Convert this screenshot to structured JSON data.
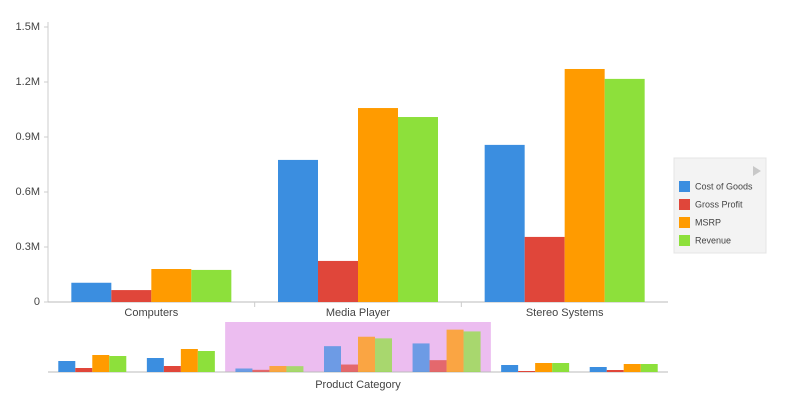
{
  "chart_data": [
    {
      "type": "bar",
      "categories": [
        "Computers",
        "Media Player",
        "Stereo Systems"
      ],
      "series": [
        {
          "name": "Cost of Goods",
          "color": "#3b8ee0",
          "values": [
            105000,
            775000,
            857000
          ]
        },
        {
          "name": "Gross Profit",
          "color": "#e0463a",
          "values": [
            65000,
            224000,
            355000
          ]
        },
        {
          "name": "MSRP",
          "color": "#ff9b00",
          "values": [
            180000,
            1058000,
            1271000
          ]
        },
        {
          "name": "Revenue",
          "color": "#8de03b",
          "values": [
            175000,
            1009000,
            1217000
          ]
        }
      ],
      "ylim": [
        0,
        1500000
      ],
      "yticks": [
        0,
        {
          "value": 300000,
          "label": "0.3M"
        },
        {
          "value": 600000,
          "label": "0.6M"
        },
        {
          "value": 900000,
          "label": "0.9M"
        },
        {
          "value": 1200000,
          "label": "1.2M"
        },
        {
          "value": 1500000,
          "label": "1.5M"
        }
      ],
      "legend": "right"
    },
    {
      "type": "bar",
      "xlabel": "Product Category",
      "categories": [
        null,
        null,
        null,
        null,
        null,
        null,
        null
      ],
      "series": [
        {
          "name": "Cost of Goods",
          "color": "#3b8ee0",
          "values": [
            330000,
            420000,
            105000,
            775000,
            857000,
            210000,
            150000
          ]
        },
        {
          "name": "Gross Profit",
          "color": "#e0463a",
          "values": [
            120000,
            180000,
            65000,
            224000,
            355000,
            30000,
            60000
          ]
        },
        {
          "name": "MSRP",
          "color": "#ff9b00",
          "values": [
            510000,
            690000,
            180000,
            1058000,
            1271000,
            270000,
            240000
          ]
        },
        {
          "name": "Revenue",
          "color": "#8de03b",
          "values": [
            480000,
            630000,
            175000,
            1009000,
            1217000,
            270000,
            240000
          ]
        }
      ],
      "ylim": [
        0,
        1500000
      ],
      "selection": [
        2,
        4
      ]
    }
  ]
}
